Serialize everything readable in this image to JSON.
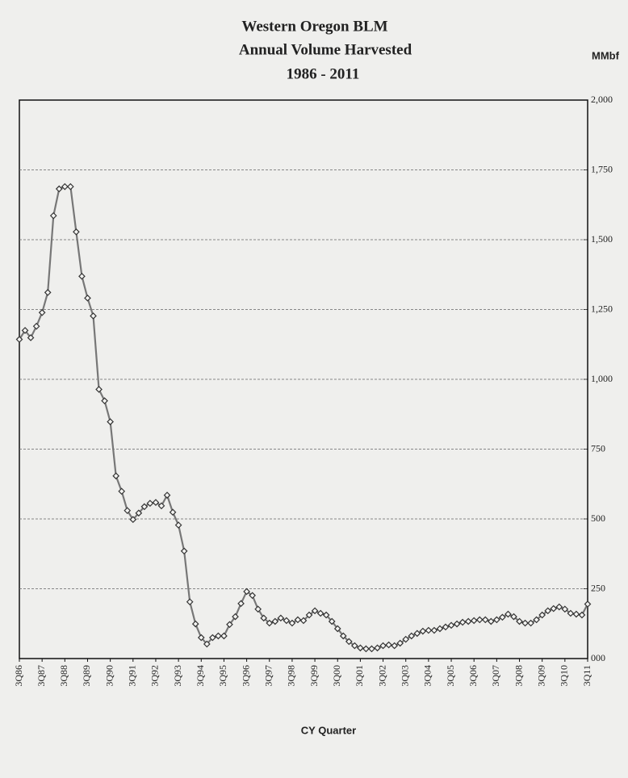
{
  "chart_data": {
    "type": "line",
    "title": [
      "Western Oregon BLM",
      "Annual Volume Harvested",
      "1986 - 2011"
    ],
    "y_unit": "MMbf",
    "x_label": "CY Quarter",
    "categories": [
      "3Q86",
      null,
      null,
      null,
      "3Q87",
      null,
      null,
      null,
      "3Q88",
      null,
      null,
      null,
      "3Q89",
      null,
      null,
      null,
      "3Q90",
      null,
      null,
      null,
      "3Q91",
      null,
      null,
      null,
      "3Q92",
      null,
      null,
      null,
      "3Q93",
      null,
      null,
      null,
      "3Q94",
      null,
      null,
      null,
      "3Q95",
      null,
      null,
      null,
      "3Q96",
      null,
      null,
      null,
      "3Q97",
      null,
      null,
      null,
      "3Q98",
      null,
      null,
      null,
      "3Q99",
      null,
      null,
      null,
      "3Q00",
      null,
      null,
      null,
      "3Q01",
      null,
      null,
      null,
      "3Q02",
      null,
      null,
      null,
      "3Q03",
      null,
      null,
      null,
      "3Q04",
      null,
      null,
      null,
      "3Q05",
      null,
      null,
      null,
      "3Q06",
      null,
      null,
      null,
      "3Q07",
      null,
      null,
      null,
      "3Q08",
      null,
      null,
      null,
      "3Q09",
      null,
      null,
      null,
      "3Q10",
      null,
      null,
      null,
      "3Q11"
    ],
    "series": [
      {
        "name": "Volume Harvested",
        "color": "#777777",
        "marker_color": "#333333",
        "values": [
          1143,
          1175,
          1149,
          1190,
          1239,
          1311,
          1586,
          1682,
          1690,
          1690,
          1528,
          1369,
          1291,
          1227,
          964,
          923,
          848,
          654,
          599,
          530,
          498,
          521,
          544,
          556,
          559,
          547,
          585,
          524,
          478,
          385,
          203,
          124,
          75,
          52,
          75,
          81,
          81,
          122,
          150,
          197,
          240,
          226,
          177,
          145,
          127,
          133,
          145,
          136,
          127,
          139,
          136,
          156,
          171,
          162,
          156,
          133,
          107,
          81,
          61,
          46,
          38,
          35,
          35,
          38,
          46,
          49,
          46,
          55,
          69,
          81,
          90,
          98,
          101,
          101,
          107,
          113,
          119,
          124,
          130,
          133,
          136,
          139,
          139,
          133,
          139,
          148,
          159,
          150,
          133,
          127,
          127,
          139,
          156,
          171,
          179,
          185,
          177,
          162,
          159,
          156,
          195
        ]
      }
    ],
    "ylim": [
      0,
      2000
    ],
    "yticks": [
      {
        "value": 0,
        "label": "000"
      },
      250,
      500,
      750,
      {
        "value": 1000,
        "label": "1,000"
      },
      {
        "value": 1250,
        "label": "1,250"
      },
      {
        "value": 1500,
        "label": "1,500"
      },
      {
        "value": 1750,
        "label": "1,750"
      },
      {
        "value": 2000,
        "label": "2,000"
      }
    ],
    "grid": true
  }
}
